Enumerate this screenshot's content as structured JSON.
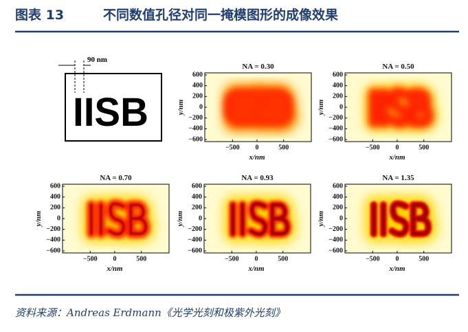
{
  "header": {
    "figure_no": "图表 13",
    "title": "不同数值孔径对同一掩模图形的成像效果"
  },
  "mask": {
    "dimension": "90 nm",
    "text": "IISB"
  },
  "panels": [
    {
      "label": "NA = 0.30"
    },
    {
      "label": "NA = 0.50"
    },
    {
      "label": "NA = 0.70"
    },
    {
      "label": "NA = 0.93"
    },
    {
      "label": "NA = 1.35"
    }
  ],
  "axes": {
    "yticks": [
      "600",
      "400",
      "200",
      "0",
      "−200",
      "−400",
      "−600"
    ],
    "xticks": [
      "−500",
      "0",
      "500"
    ],
    "ylabel": "y/nm",
    "xlabel": "x/nm"
  },
  "source": "资料来源：Andreas Erdmann《光学光刻和极紫外光刻》"
}
